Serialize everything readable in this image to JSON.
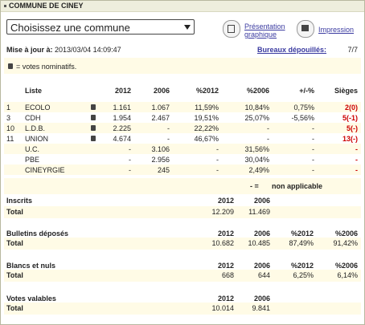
{
  "header": {
    "title": "COMMUNE DE CINEY"
  },
  "toolbar": {
    "select_value": "Choisissez une commune",
    "presentation_line1": "Présentation",
    "presentation_line2": "graphique",
    "print_label": "Impression"
  },
  "update": {
    "label": "Mise à jour à:",
    "value": "2013/03/04 14:09:47"
  },
  "bureaux": {
    "label": "Bureaux dépouillés:",
    "value": "7/7"
  },
  "legend_text": "= votes nominatifs.",
  "results": {
    "headers": [
      "Liste",
      "2012",
      "2006",
      "%2012",
      "%2006",
      "+/-%",
      "Sièges"
    ],
    "rows": [
      {
        "num": "1",
        "name": "ECOLO",
        "icon": true,
        "v2012": "1.161",
        "v2006": "1.067",
        "p2012": "11,59%",
        "p2006": "10,84%",
        "diff": "0,75%",
        "seats": "2(0)"
      },
      {
        "num": "3",
        "name": "CDH",
        "icon": true,
        "v2012": "1.954",
        "v2006": "2.467",
        "p2012": "19,51%",
        "p2006": "25,07%",
        "diff": "-5,56%",
        "seats": "5(-1)"
      },
      {
        "num": "10",
        "name": "L.D.B.",
        "icon": true,
        "v2012": "2.225",
        "v2006": "-",
        "p2012": "22,22%",
        "p2006": "-",
        "diff": "-",
        "seats": "5(-)"
      },
      {
        "num": "11",
        "name": "UNION",
        "icon": true,
        "v2012": "4.674",
        "v2006": "-",
        "p2012": "46,67%",
        "p2006": "-",
        "diff": "-",
        "seats": "13(-)"
      },
      {
        "num": "",
        "name": "U.C.",
        "icon": false,
        "v2012": "-",
        "v2006": "3.106",
        "p2012": "-",
        "p2006": "31,56%",
        "diff": "-",
        "seats": "-"
      },
      {
        "num": "",
        "name": "PBE",
        "icon": false,
        "v2012": "-",
        "v2006": "2.956",
        "p2012": "-",
        "p2006": "30,04%",
        "diff": "-",
        "seats": "-"
      },
      {
        "num": "",
        "name": "CINEYRGIE",
        "icon": false,
        "v2012": "-",
        "v2006": "245",
        "p2012": "-",
        "p2006": "2,49%",
        "diff": "-",
        "seats": "-"
      }
    ]
  },
  "na_note": {
    "symbol": "- =",
    "text": "non applicable"
  },
  "inscrits": {
    "title": "Inscrits",
    "h2012": "2012",
    "h2006": "2006",
    "total_label": "Total",
    "t2012": "12.209",
    "t2006": "11.469"
  },
  "bulletins": {
    "title": "Bulletins  déposés",
    "h2012": "2012",
    "h2006": "2006",
    "hp2012": "%2012",
    "hp2006": "%2006",
    "total_label": "Total",
    "t2012": "10.682",
    "t2006": "10.485",
    "tp2012": "87,49%",
    "tp2006": "91,42%"
  },
  "blancs": {
    "title": "Blancs et nuls",
    "h2012": "2012",
    "h2006": "2006",
    "hp2012": "%2012",
    "hp2006": "%2006",
    "total_label": "Total",
    "t2012": "668",
    "t2006": "644",
    "tp2012": "6,25%",
    "tp2006": "6,14%"
  },
  "valables": {
    "title": "Votes valables",
    "h2012": "2012",
    "h2006": "2006",
    "total_label": "Total",
    "t2012": "10.014",
    "t2006": "9.841"
  }
}
